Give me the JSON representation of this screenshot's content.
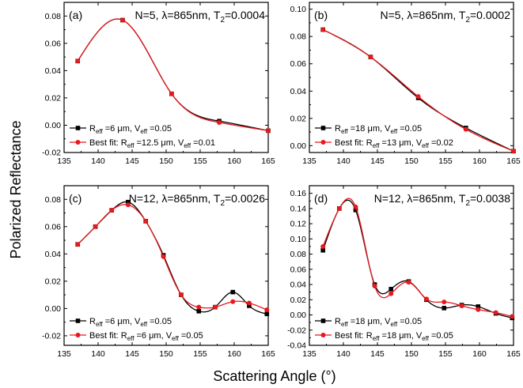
{
  "figure": {
    "ylabel": "Polarized Reflectance",
    "xlabel": "Scattering Angle (°)",
    "colors": {
      "series_1": "#000000",
      "series_2": "#e8181d"
    }
  },
  "chart_data": [
    {
      "type": "line",
      "panel": "(a)",
      "title_parts": {
        "pre": "N=5, ",
        "lambda": "λ",
        "mid": "=865nm, T",
        "sub": "2",
        "post": "=0.0004"
      },
      "xlim": [
        135,
        165
      ],
      "ylim": [
        -0.02,
        0.09
      ],
      "xticks": [
        135,
        140,
        145,
        150,
        155,
        160,
        165
      ],
      "yticks": [
        -0.02,
        0.0,
        0.02,
        0.04,
        0.06,
        0.08
      ],
      "ytick_labels": [
        "-0.02",
        "0.00",
        "0.02",
        "0.04",
        "0.06",
        "0.08"
      ],
      "series": [
        {
          "legend": {
            "a": "R",
            "a_sub": "eff",
            "b": " =6 μm, V",
            "b_sub": "eff",
            "c": " =0.05"
          },
          "color": "#000000",
          "marker": "square",
          "x": [
            137,
            143.6,
            150.8,
            157.8,
            165
          ],
          "y": [
            0.047,
            0.077,
            0.023,
            0.003,
            -0.004
          ]
        },
        {
          "legend": {
            "a": "Best fit: R",
            "a_sub": "eff",
            "b": " =12.5 μm, V",
            "b_sub": "eff",
            "c": " =0.01"
          },
          "color": "#e8181d",
          "marker": "circle",
          "x": [
            137,
            143.6,
            150.8,
            157.8,
            165
          ],
          "y": [
            0.047,
            0.077,
            0.023,
            0.002,
            -0.004
          ]
        }
      ]
    },
    {
      "type": "line",
      "panel": "(b)",
      "title_parts": {
        "pre": "N=5, ",
        "lambda": "λ",
        "mid": "=865nm, T",
        "sub": "2",
        "post": "=0.0002"
      },
      "xlim": [
        135,
        165
      ],
      "ylim": [
        -0.005,
        0.105
      ],
      "xticks": [
        135,
        140,
        145,
        150,
        155,
        160,
        165
      ],
      "yticks": [
        0.0,
        0.02,
        0.04,
        0.06,
        0.08,
        0.1
      ],
      "ytick_labels": [
        "0.00",
        "0.02",
        "0.04",
        "0.06",
        "0.08",
        "0.10"
      ],
      "series": [
        {
          "legend": {
            "a": "R",
            "a_sub": "eff",
            "b": " =18 μm, V",
            "b_sub": "eff",
            "c": " =0.05"
          },
          "color": "#000000",
          "marker": "square",
          "x": [
            137,
            144,
            151,
            158,
            165
          ],
          "y": [
            0.085,
            0.065,
            0.035,
            0.013,
            -0.004
          ]
        },
        {
          "legend": {
            "a": "Best fit: R",
            "a_sub": "eff",
            "b": " =13 μm, V",
            "b_sub": "eff",
            "c": " =0.02"
          },
          "color": "#e8181d",
          "marker": "circle",
          "x": [
            137,
            144,
            151,
            158,
            165
          ],
          "y": [
            0.085,
            0.065,
            0.036,
            0.012,
            -0.004
          ]
        }
      ]
    },
    {
      "type": "line",
      "panel": "(c)",
      "title_parts": {
        "pre": "N=12, ",
        "lambda": "λ",
        "mid": "=865nm, T",
        "sub": "2",
        "post": "=0.0026"
      },
      "xlim": [
        135,
        165
      ],
      "ylim": [
        -0.027,
        0.09
      ],
      "xticks": [
        135,
        140,
        145,
        150,
        155,
        160,
        165
      ],
      "yticks": [
        -0.02,
        0.0,
        0.02,
        0.04,
        0.06,
        0.08
      ],
      "ytick_labels": [
        "-0.02",
        "0.00",
        "0.02",
        "0.04",
        "0.06",
        "0.08"
      ],
      "series": [
        {
          "legend": {
            "a": "R",
            "a_sub": "eff",
            "b": " =6 μm, V",
            "b_sub": "eff",
            "c": " =0.05"
          },
          "color": "#000000",
          "marker": "square",
          "x": [
            137,
            139.6,
            142,
            144.4,
            147,
            149.6,
            152.2,
            154.8,
            157.2,
            159.8,
            162.2,
            164.8
          ],
          "y": [
            0.047,
            0.06,
            0.072,
            0.078,
            0.064,
            0.039,
            0.01,
            -0.002,
            0.001,
            0.012,
            0.002,
            -0.004
          ]
        },
        {
          "legend": {
            "a": "Best fit: R",
            "a_sub": "eff",
            "b": " =6 μm, V",
            "b_sub": "eff",
            "c": " =0.05"
          },
          "color": "#e8181d",
          "marker": "circle",
          "x": [
            137,
            139.6,
            142,
            144.4,
            147,
            149.6,
            152.2,
            154.8,
            157.2,
            159.8,
            162.2,
            164.8
          ],
          "y": [
            0.047,
            0.06,
            0.072,
            0.076,
            0.064,
            0.038,
            0.01,
            0.001,
            0.001,
            0.005,
            0.004,
            -0.001
          ]
        }
      ]
    },
    {
      "type": "line",
      "panel": "(d)",
      "title_parts": {
        "pre": "N=12, ",
        "lambda": "λ",
        "mid": "=865nm, T",
        "sub": "2",
        "post": "=0.0038"
      },
      "xlim": [
        135,
        165
      ],
      "ylim": [
        -0.04,
        0.17
      ],
      "xticks": [
        135,
        140,
        145,
        150,
        155,
        160,
        165
      ],
      "yticks": [
        -0.04,
        -0.02,
        0.0,
        0.02,
        0.04,
        0.06,
        0.08,
        0.1,
        0.12,
        0.14,
        0.16
      ],
      "ytick_labels": [
        "-0.04",
        "-0.02",
        "0.00",
        "0.02",
        "0.04",
        "0.06",
        "0.08",
        "0.10",
        "0.12",
        "0.14",
        "0.16"
      ],
      "series": [
        {
          "legend": {
            "a": "R",
            "a_sub": "eff",
            "b": " =18 μm, V",
            "b_sub": "eff",
            "c": " =0.05"
          },
          "color": "#000000",
          "marker": "square",
          "x": [
            137,
            139.4,
            141.8,
            144.6,
            147,
            149.6,
            152.2,
            154.8,
            157.4,
            159.8,
            162.4,
            164.8
          ],
          "y": [
            0.085,
            0.14,
            0.138,
            0.04,
            0.034,
            0.044,
            0.02,
            0.009,
            0.013,
            0.011,
            0.002,
            -0.004
          ]
        },
        {
          "legend": {
            "a": "Best fit: R",
            "a_sub": "eff",
            "b": " =18 μm, V",
            "b_sub": "eff",
            "c": " =0.05"
          },
          "color": "#e8181d",
          "marker": "circle",
          "x": [
            137,
            139.4,
            141.8,
            144.6,
            147,
            149.6,
            152.2,
            154.8,
            157.4,
            159.8,
            162.4,
            164.8
          ],
          "y": [
            0.09,
            0.14,
            0.142,
            0.038,
            0.028,
            0.043,
            0.021,
            0.017,
            0.012,
            0.007,
            0.003,
            -0.002
          ]
        }
      ]
    }
  ]
}
